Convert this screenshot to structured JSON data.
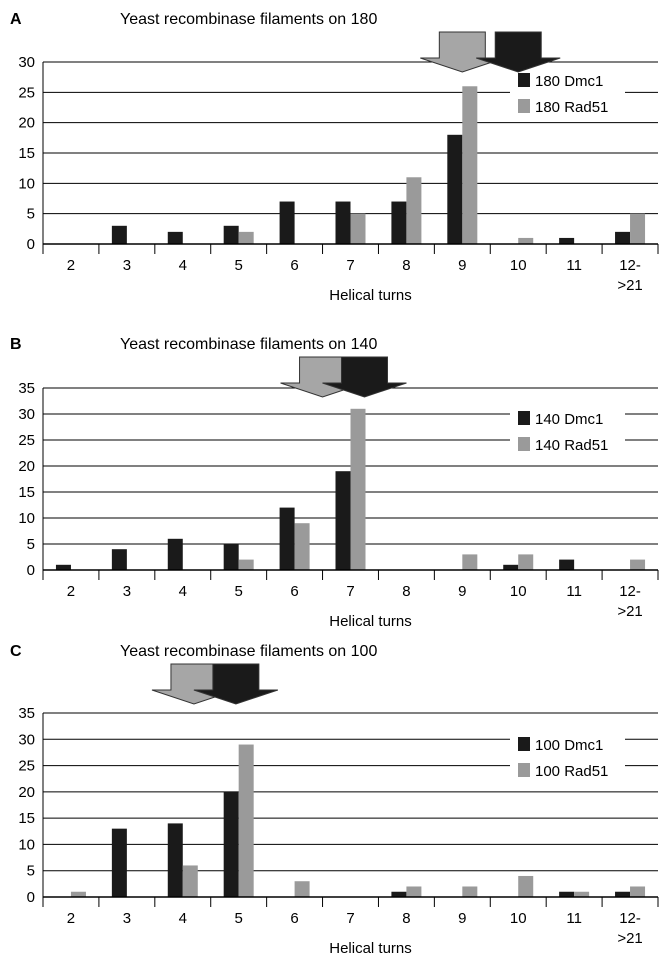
{
  "colors": {
    "dmc1": "#1a1a1a",
    "rad51": "#9a9a9a",
    "arrow_dark": "#1a1a1a",
    "arrow_light": "#a6a6a6",
    "grid": "#000000"
  },
  "chart_data": [
    {
      "panel": "A",
      "type": "bar",
      "title": "Yeast recombinase filaments on 180",
      "xlabel": "Helical turns",
      "ylabel": "",
      "categories": [
        "2",
        "3",
        "4",
        "5",
        "6",
        "7",
        "8",
        "9",
        "10",
        "11",
        "12-\n>21"
      ],
      "ylim": [
        0,
        30
      ],
      "yticks": [
        0,
        5,
        10,
        15,
        20,
        25,
        30
      ],
      "grid": true,
      "legend_position": "top-right",
      "series": [
        {
          "name": "180 Dmc1",
          "values": [
            0,
            3,
            2,
            3,
            7,
            7,
            7,
            18,
            0,
            1,
            2
          ]
        },
        {
          "name": "180 Rad51",
          "values": [
            0,
            0,
            0,
            2,
            0,
            5,
            11,
            26,
            1,
            0,
            5
          ]
        }
      ],
      "arrows": [
        {
          "style": "light",
          "at_category": 7.5
        },
        {
          "style": "dark",
          "at_category": 8.5
        }
      ]
    },
    {
      "panel": "B",
      "type": "bar",
      "title": "Yeast recombinase filaments on 140",
      "xlabel": "Helical turns",
      "ylabel": "",
      "categories": [
        "2",
        "3",
        "4",
        "5",
        "6",
        "7",
        "8",
        "9",
        "10",
        "11",
        "12-\n>21"
      ],
      "ylim": [
        0,
        35
      ],
      "yticks": [
        0,
        5,
        10,
        15,
        20,
        25,
        30,
        35
      ],
      "grid": true,
      "legend_position": "right",
      "series": [
        {
          "name": "140 Dmc1",
          "values": [
            1,
            4,
            6,
            5,
            12,
            19,
            0,
            0,
            1,
            2,
            0
          ]
        },
        {
          "name": "140 Rad51",
          "values": [
            0,
            0,
            0,
            2,
            9,
            31,
            0,
            3,
            3,
            0,
            2
          ]
        }
      ],
      "arrows": [
        {
          "style": "light",
          "at_category": 5.0
        },
        {
          "style": "dark",
          "at_category": 5.75
        }
      ]
    },
    {
      "panel": "C",
      "type": "bar",
      "title": "Yeast recombinase filaments on 100",
      "xlabel": "Helical turns",
      "ylabel": "",
      "categories": [
        "2",
        "3",
        "4",
        "5",
        "6",
        "7",
        "8",
        "9",
        "10",
        "11",
        "12-\n>21"
      ],
      "ylim": [
        0,
        35
      ],
      "yticks": [
        0,
        5,
        10,
        15,
        20,
        25,
        30,
        35
      ],
      "grid": true,
      "legend_position": "right",
      "series": [
        {
          "name": "100 Dmc1",
          "values": [
            0,
            13,
            14,
            20,
            0,
            0,
            1,
            0,
            0,
            1,
            1
          ]
        },
        {
          "name": "100 Rad51",
          "values": [
            1,
            0,
            6,
            29,
            3,
            0,
            2,
            2,
            4,
            1,
            2
          ]
        }
      ],
      "arrows": [
        {
          "style": "light",
          "at_category": 2.7
        },
        {
          "style": "dark",
          "at_category": 3.45
        }
      ]
    }
  ]
}
